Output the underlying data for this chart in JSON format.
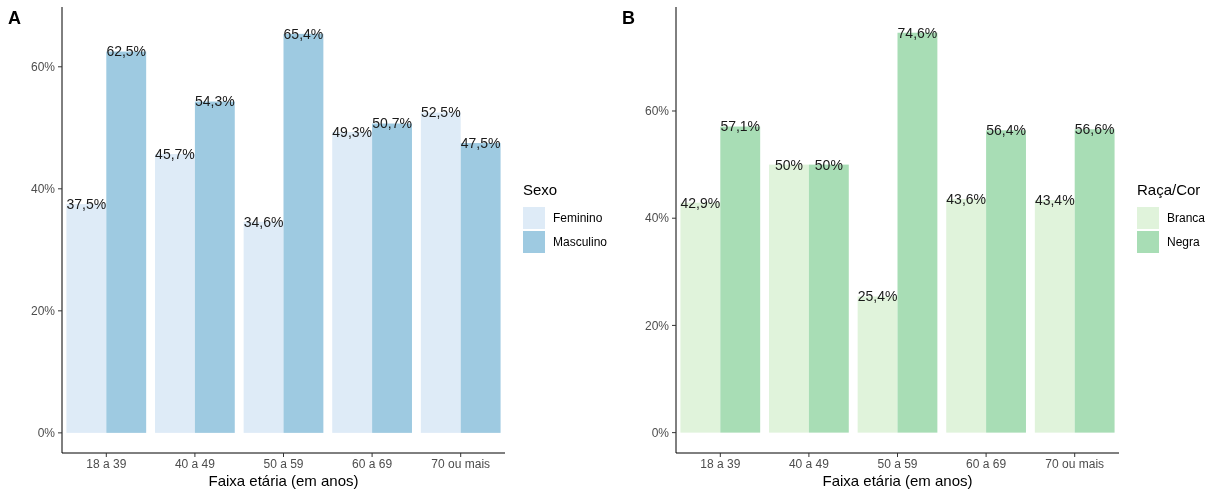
{
  "chart_data": [
    {
      "type": "bar",
      "title": "A",
      "xlabel": "Faixa etária (em anos)",
      "legend_title": "Sexo",
      "legend": "right",
      "grid": false,
      "categories": [
        "18 a 39",
        "40 a 49",
        "50 a 59",
        "60 a 69",
        "70 ou mais"
      ],
      "ylim": [
        -3.3,
        69.8
      ],
      "yticks": [
        {
          "value": 0,
          "label": "0%"
        },
        {
          "value": 20,
          "label": "20%"
        },
        {
          "value": 40,
          "label": "40%"
        },
        {
          "value": 60,
          "label": "60%"
        }
      ],
      "series": [
        {
          "name": "Feminino",
          "color": "#deebf7",
          "values": [
            37.5,
            45.7,
            34.6,
            49.3,
            52.5
          ],
          "value_labels": [
            "37,5%",
            "45,7%",
            "34,6%",
            "49,3%",
            "52,5%"
          ]
        },
        {
          "name": "Masculino",
          "color": "#9ecae1",
          "values": [
            62.5,
            54.3,
            65.4,
            50.7,
            47.5
          ],
          "value_labels": [
            "62,5%",
            "54,3%",
            "65,4%",
            "50,7%",
            "47,5%"
          ]
        }
      ]
    },
    {
      "type": "bar",
      "title": "B",
      "xlabel": "Faixa etária (em anos)",
      "legend_title": "Raça/Cor",
      "legend": "right",
      "grid": false,
      "categories": [
        "18 a 39",
        "40 a 49",
        "50 a 59",
        "60 a 69",
        "70 ou mais"
      ],
      "ylim": [
        -3.8,
        79.4
      ],
      "yticks": [
        {
          "value": 0,
          "label": "0%"
        },
        {
          "value": 20,
          "label": "20%"
        },
        {
          "value": 40,
          "label": "40%"
        },
        {
          "value": 60,
          "label": "60%"
        }
      ],
      "series": [
        {
          "name": "Branca",
          "color": "#e0f3db",
          "values": [
            42.9,
            50,
            25.4,
            43.6,
            43.4
          ],
          "value_labels": [
            "42,9%",
            "50%",
            "25,4%",
            "43,6%",
            "43,4%"
          ]
        },
        {
          "name": "Negra",
          "color": "#a8ddb5",
          "values": [
            57.1,
            50,
            74.6,
            56.4,
            56.6
          ],
          "value_labels": [
            "57,1%",
            "50%",
            "74,6%",
            "56,4%",
            "56,6%"
          ]
        }
      ]
    }
  ]
}
